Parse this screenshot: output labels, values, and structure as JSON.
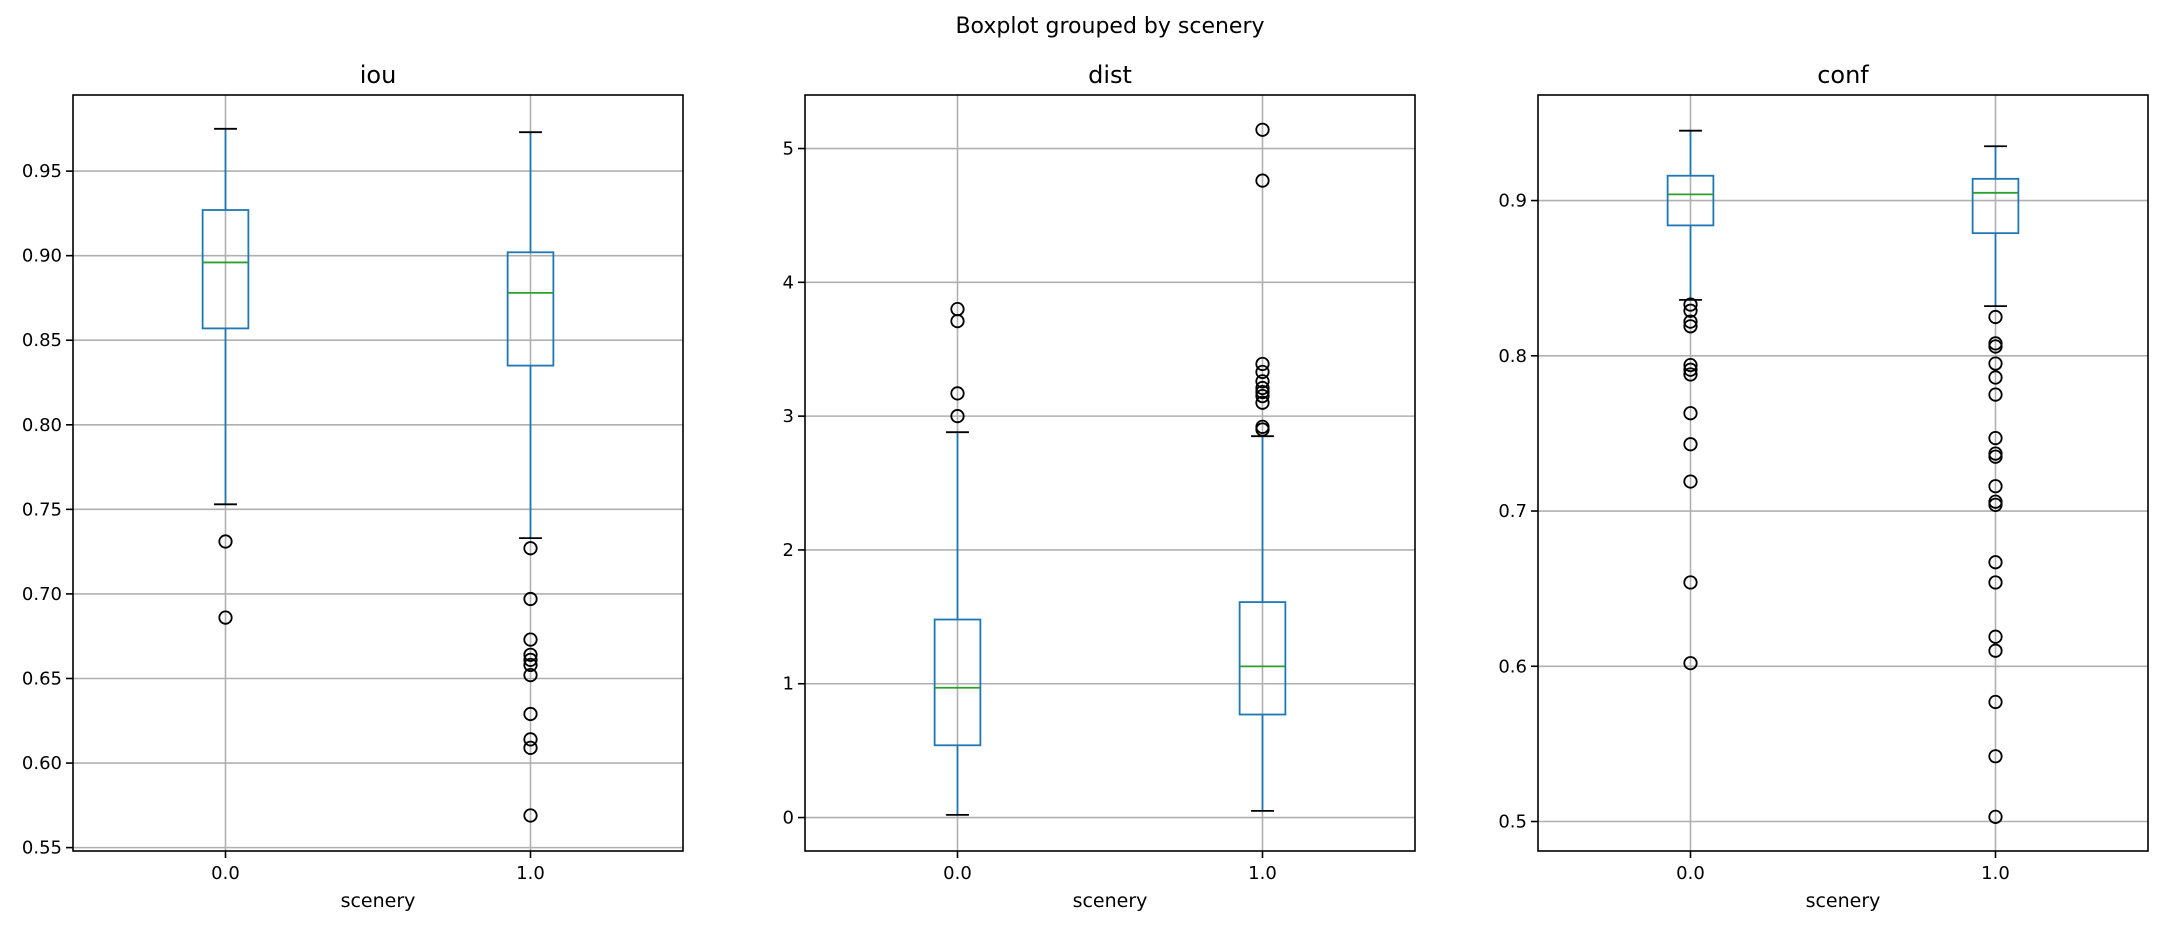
{
  "figure": {
    "title": "Boxplot grouped by scenery"
  },
  "chart_data": [
    {
      "type": "boxplot",
      "title": "iou",
      "xlabel": "scenery",
      "categories": [
        "0.0",
        "1.0"
      ],
      "ylim": [
        0.548,
        0.995
      ],
      "yticks": [
        0.55,
        0.6,
        0.65,
        0.7,
        0.75,
        0.8,
        0.85,
        0.9,
        0.95
      ],
      "ytick_labels": [
        "0.55",
        "0.60",
        "0.65",
        "0.70",
        "0.75",
        "0.80",
        "0.85",
        "0.90",
        "0.95"
      ],
      "grid": true,
      "groups": [
        {
          "whislo": 0.753,
          "q1": 0.857,
          "med": 0.896,
          "q3": 0.927,
          "whishi": 0.975,
          "fliers": [
            0.731,
            0.686
          ]
        },
        {
          "whislo": 0.733,
          "q1": 0.835,
          "med": 0.878,
          "q3": 0.902,
          "whishi": 0.973,
          "fliers": [
            0.727,
            0.697,
            0.673,
            0.664,
            0.661,
            0.658,
            0.652,
            0.629,
            0.614,
            0.609,
            0.569
          ]
        }
      ]
    },
    {
      "type": "boxplot",
      "title": "dist",
      "xlabel": "scenery",
      "categories": [
        "0.0",
        "1.0"
      ],
      "ylim": [
        -0.25,
        5.4
      ],
      "yticks": [
        0,
        1,
        2,
        3,
        4,
        5
      ],
      "ytick_labels": [
        "0",
        "1",
        "2",
        "3",
        "4",
        "5"
      ],
      "grid": true,
      "groups": [
        {
          "whislo": 0.02,
          "q1": 0.54,
          "med": 0.97,
          "q3": 1.48,
          "whishi": 2.88,
          "fliers": [
            3.8,
            3.71,
            3.17,
            3.0
          ]
        },
        {
          "whislo": 0.05,
          "q1": 0.77,
          "med": 1.13,
          "q3": 1.61,
          "whishi": 2.85,
          "fliers": [
            5.14,
            4.76,
            3.39,
            3.33,
            3.26,
            3.21,
            3.18,
            3.15,
            3.1,
            2.92,
            2.9
          ]
        }
      ]
    },
    {
      "type": "boxplot",
      "title": "conf",
      "xlabel": "scenery",
      "categories": [
        "0.0",
        "1.0"
      ],
      "ylim": [
        0.481,
        0.968
      ],
      "yticks": [
        0.5,
        0.6,
        0.7,
        0.8,
        0.9
      ],
      "ytick_labels": [
        "0.5",
        "0.6",
        "0.7",
        "0.8",
        "0.9"
      ],
      "grid": true,
      "groups": [
        {
          "whislo": 0.836,
          "q1": 0.884,
          "med": 0.904,
          "q3": 0.916,
          "whishi": 0.945,
          "fliers": [
            0.833,
            0.829,
            0.822,
            0.819,
            0.794,
            0.791,
            0.788,
            0.763,
            0.743,
            0.719,
            0.654,
            0.602
          ]
        },
        {
          "whislo": 0.832,
          "q1": 0.879,
          "med": 0.905,
          "q3": 0.914,
          "whishi": 0.935,
          "fliers": [
            0.825,
            0.808,
            0.806,
            0.795,
            0.786,
            0.775,
            0.747,
            0.737,
            0.735,
            0.716,
            0.706,
            0.704,
            0.667,
            0.654,
            0.619,
            0.61,
            0.577,
            0.542,
            0.503
          ]
        }
      ]
    }
  ]
}
